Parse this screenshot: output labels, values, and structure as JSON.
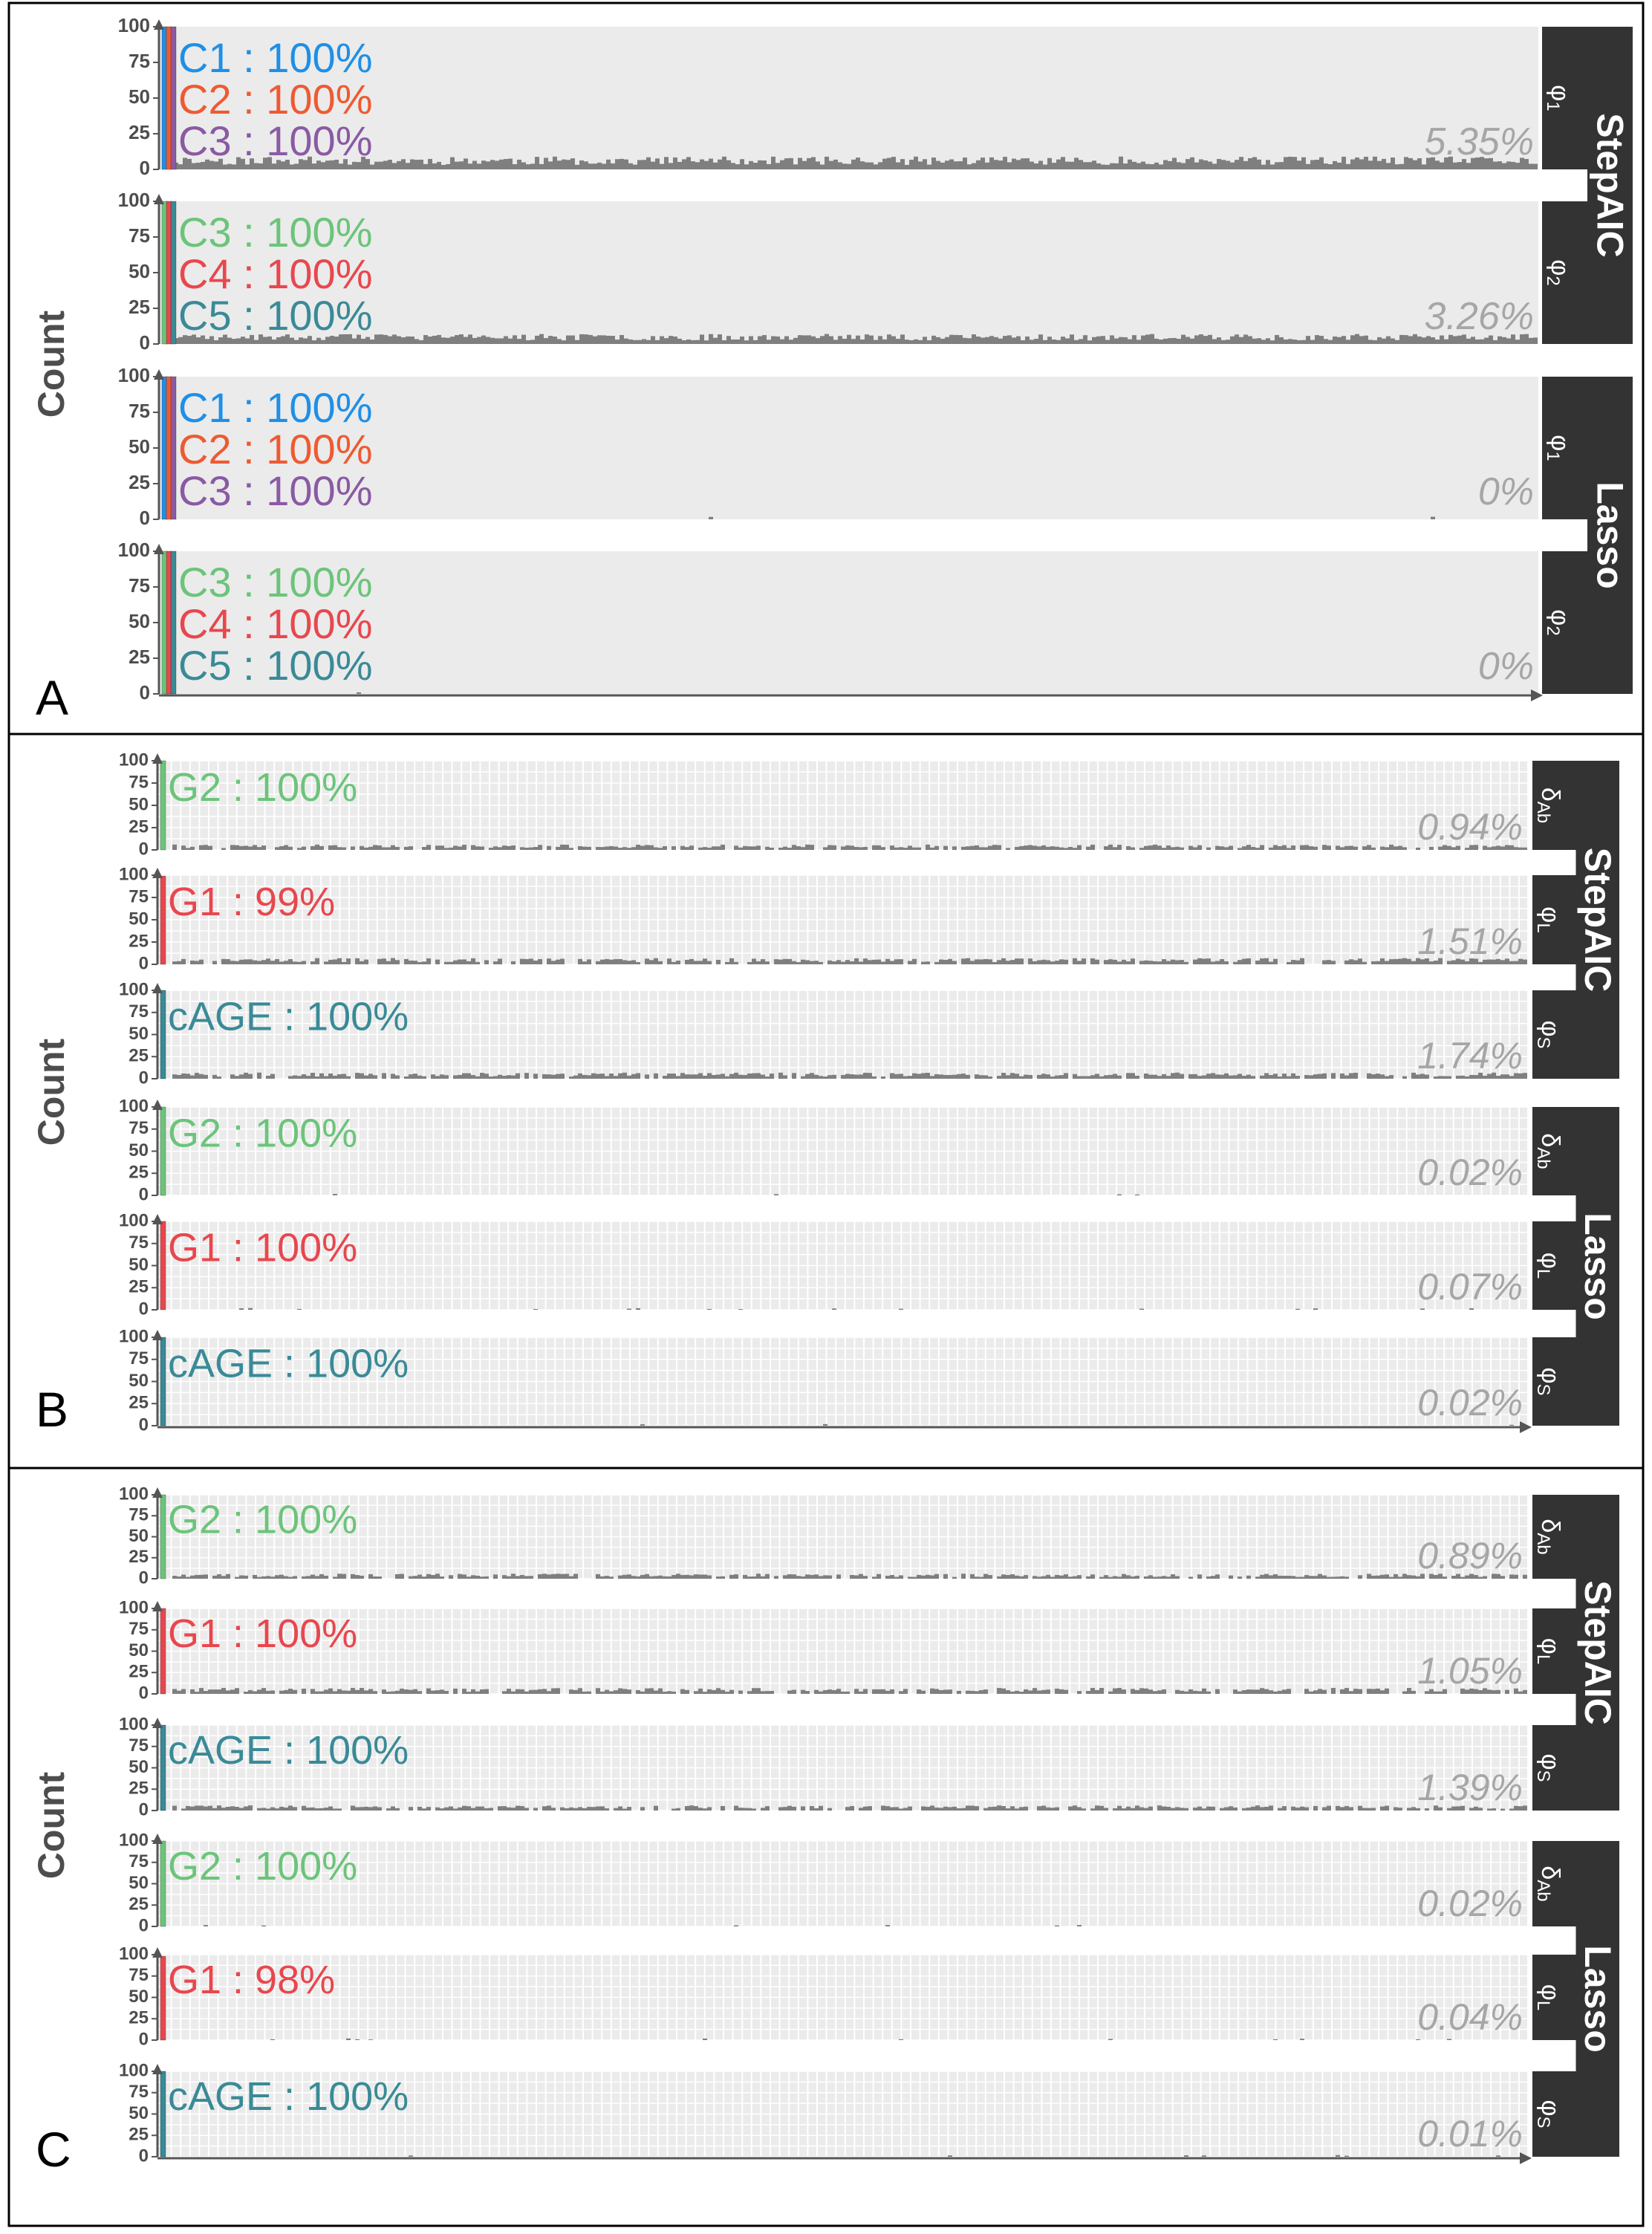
{
  "figure": {
    "y_axis_label": "Count",
    "colors": {
      "panel_bg": "#ebebeb",
      "grid": "#ffffff",
      "strip_bg": "#333333",
      "strip_text": "#ffffff",
      "bars": "#7f7f7f",
      "pct_text": "#a6a6a6",
      "axis": "#555555",
      "tick_text": "#4d4d4d",
      "frame": "#000000"
    }
  },
  "chart_data": [
    {
      "type": "bar",
      "panel_label": "A",
      "ylabel": "Count",
      "ylim": [
        0,
        100
      ],
      "yticks": [
        "0",
        "25",
        "50",
        "75",
        "100"
      ],
      "grid": false,
      "groups": [
        {
          "method": "StepAIC",
          "facets": [
            {
              "param": "φ1",
              "annotations": [
                {
                  "label": "C1 : 100%",
                  "color": "#1f8fe6"
                },
                {
                  "label": "C2 : 100%",
                  "color": "#ee5a32"
                },
                {
                  "label": "C3 : 100%",
                  "color": "#8a5aa3"
                }
              ],
              "selected_bar_values": [
                100,
                100,
                100
              ],
              "selected_bar_colors": [
                "#1f8fe6",
                "#ee5a32",
                "#8a5aa3"
              ],
              "other_selection_pct": "5.35%",
              "noise": {
                "seed": 11,
                "max": 9,
                "density": 1.0
              }
            },
            {
              "param": "φ2",
              "annotations": [
                {
                  "label": "C3 : 100%",
                  "color": "#6cc47a"
                },
                {
                  "label": "C4 : 100%",
                  "color": "#e8474e"
                },
                {
                  "label": "C5 : 100%",
                  "color": "#3a8a97"
                }
              ],
              "selected_bar_values": [
                100,
                100,
                100
              ],
              "selected_bar_colors": [
                "#6cc47a",
                "#e8474e",
                "#3a8a97"
              ],
              "other_selection_pct": "3.26%",
              "noise": {
                "seed": 23,
                "max": 7,
                "density": 1.0
              }
            }
          ]
        },
        {
          "method": "Lasso",
          "facets": [
            {
              "param": "φ1",
              "annotations": [
                {
                  "label": "C1 : 100%",
                  "color": "#1f8fe6"
                },
                {
                  "label": "C2 : 100%",
                  "color": "#ee5a32"
                },
                {
                  "label": "C3 : 100%",
                  "color": "#8a5aa3"
                }
              ],
              "selected_bar_values": [
                100,
                100,
                100
              ],
              "selected_bar_colors": [
                "#1f8fe6",
                "#ee5a32",
                "#8a5aa3"
              ],
              "other_selection_pct": "0%",
              "noise": {
                "seed": 31,
                "max": 2,
                "density": 0.01
              }
            },
            {
              "param": "φ2",
              "annotations": [
                {
                  "label": "C3 : 100%",
                  "color": "#6cc47a"
                },
                {
                  "label": "C4 : 100%",
                  "color": "#e8474e"
                },
                {
                  "label": "C5 : 100%",
                  "color": "#3a8a97"
                }
              ],
              "selected_bar_values": [
                100,
                100,
                100
              ],
              "selected_bar_colors": [
                "#6cc47a",
                "#e8474e",
                "#3a8a97"
              ],
              "other_selection_pct": "0%",
              "noise": {
                "seed": 37,
                "max": 2,
                "density": 0.01
              }
            }
          ]
        }
      ]
    },
    {
      "type": "bar",
      "panel_label": "B",
      "ylabel": "Count",
      "ylim": [
        0,
        100
      ],
      "yticks": [
        "0",
        "25",
        "50",
        "75",
        "100"
      ],
      "grid": true,
      "groups": [
        {
          "method": "StepAIC",
          "facets": [
            {
              "param": "δAb",
              "annotations": [
                {
                  "label": "G2 : 100%",
                  "color": "#6cc47a"
                }
              ],
              "selected_bar_values": [
                100
              ],
              "selected_bar_colors": [
                "#6cc47a"
              ],
              "other_selection_pct": "0.94%",
              "noise": {
                "seed": 41,
                "max": 6,
                "density": 0.8
              }
            },
            {
              "param": "φL",
              "annotations": [
                {
                  "label": "G1 : 99%",
                  "color": "#e8474e"
                }
              ],
              "selected_bar_values": [
                99
              ],
              "selected_bar_colors": [
                "#e8474e"
              ],
              "other_selection_pct": "1.51%",
              "noise": {
                "seed": 43,
                "max": 7,
                "density": 0.8
              }
            },
            {
              "param": "φS",
              "annotations": [
                {
                  "label": "cAGE : 100%",
                  "color": "#3a8a97"
                }
              ],
              "selected_bar_values": [
                100
              ],
              "selected_bar_colors": [
                "#3a8a97"
              ],
              "other_selection_pct": "1.74%",
              "noise": {
                "seed": 47,
                "max": 7,
                "density": 0.85
              }
            }
          ]
        },
        {
          "method": "Lasso",
          "facets": [
            {
              "param": "δAb",
              "annotations": [
                {
                  "label": "G2 : 100%",
                  "color": "#6cc47a"
                }
              ],
              "selected_bar_values": [
                100
              ],
              "selected_bar_colors": [
                "#6cc47a"
              ],
              "other_selection_pct": "0.02%",
              "noise": {
                "seed": 53,
                "max": 2,
                "density": 0.02
              }
            },
            {
              "param": "φL",
              "annotations": [
                {
                  "label": "G1 : 100%",
                  "color": "#e8474e"
                }
              ],
              "selected_bar_values": [
                100
              ],
              "selected_bar_colors": [
                "#e8474e"
              ],
              "other_selection_pct": "0.07%",
              "noise": {
                "seed": 59,
                "max": 2,
                "density": 0.04
              }
            },
            {
              "param": "φS",
              "annotations": [
                {
                  "label": "cAGE : 100%",
                  "color": "#3a8a97"
                }
              ],
              "selected_bar_values": [
                100
              ],
              "selected_bar_colors": [
                "#3a8a97"
              ],
              "other_selection_pct": "0.02%",
              "noise": {
                "seed": 61,
                "max": 2,
                "density": 0.02
              }
            }
          ]
        }
      ]
    },
    {
      "type": "bar",
      "panel_label": "C",
      "ylabel": "Count",
      "ylim": [
        0,
        100
      ],
      "yticks": [
        "0",
        "25",
        "50",
        "75",
        "100"
      ],
      "grid": true,
      "groups": [
        {
          "method": "StepAIC",
          "facets": [
            {
              "param": "δAb",
              "annotations": [
                {
                  "label": "G2 : 100%",
                  "color": "#6cc47a"
                }
              ],
              "selected_bar_values": [
                100
              ],
              "selected_bar_colors": [
                "#6cc47a"
              ],
              "other_selection_pct": "0.89%",
              "noise": {
                "seed": 67,
                "max": 6,
                "density": 0.8
              }
            },
            {
              "param": "φL",
              "annotations": [
                {
                  "label": "G1 : 100%",
                  "color": "#e8474e"
                }
              ],
              "selected_bar_values": [
                100
              ],
              "selected_bar_colors": [
                "#e8474e"
              ],
              "other_selection_pct": "1.05%",
              "noise": {
                "seed": 71,
                "max": 7,
                "density": 0.8
              }
            },
            {
              "param": "φS",
              "annotations": [
                {
                  "label": "cAGE : 100%",
                  "color": "#3a8a97"
                }
              ],
              "selected_bar_values": [
                100
              ],
              "selected_bar_colors": [
                "#3a8a97"
              ],
              "other_selection_pct": "1.39%",
              "noise": {
                "seed": 73,
                "max": 6,
                "density": 0.8
              }
            }
          ]
        },
        {
          "method": "Lasso",
          "facets": [
            {
              "param": "δAb",
              "annotations": [
                {
                  "label": "G2 : 100%",
                  "color": "#6cc47a"
                }
              ],
              "selected_bar_values": [
                100
              ],
              "selected_bar_colors": [
                "#6cc47a"
              ],
              "other_selection_pct": "0.02%",
              "noise": {
                "seed": 79,
                "max": 2,
                "density": 0.02
              }
            },
            {
              "param": "φL",
              "annotations": [
                {
                  "label": "G1 : 98%",
                  "color": "#e8474e"
                }
              ],
              "selected_bar_values": [
                98
              ],
              "selected_bar_colors": [
                "#e8474e"
              ],
              "other_selection_pct": "0.04%",
              "noise": {
                "seed": 83,
                "max": 2,
                "density": 0.03
              }
            },
            {
              "param": "φS",
              "annotations": [
                {
                  "label": "cAGE : 100%",
                  "color": "#3a8a97"
                }
              ],
              "selected_bar_values": [
                100
              ],
              "selected_bar_colors": [
                "#3a8a97"
              ],
              "other_selection_pct": "0.01%",
              "noise": {
                "seed": 89,
                "max": 2,
                "density": 0.02
              }
            }
          ]
        }
      ]
    }
  ]
}
